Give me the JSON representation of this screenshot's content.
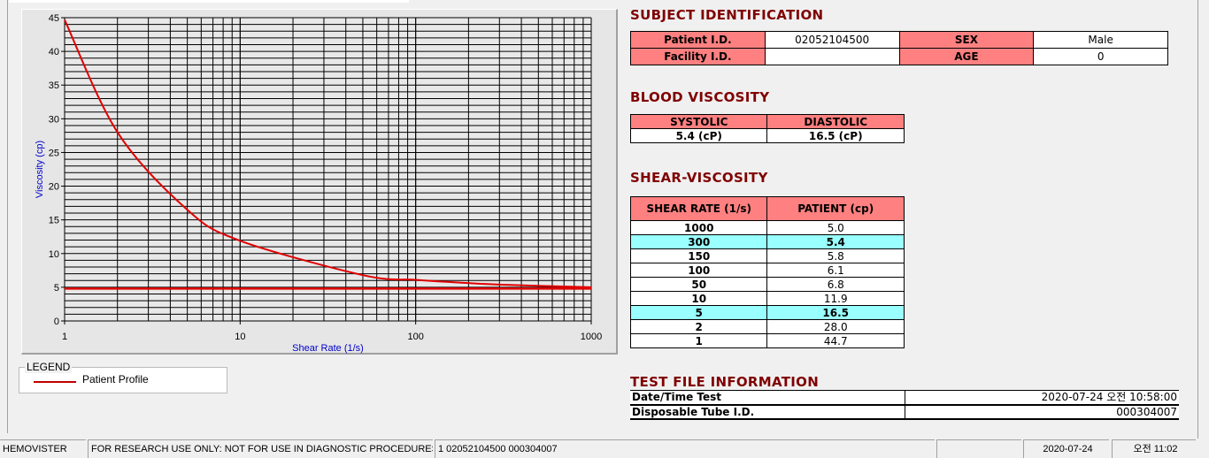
{
  "chart_data": {
    "type": "line",
    "xlabel": "Shear Rate (1/s)",
    "ylabel": "Viscosity (cp)",
    "xscale": "log",
    "xlim": [
      1,
      1000
    ],
    "ylim": [
      0,
      45
    ],
    "xticks": [
      "1",
      "10",
      "100",
      "1000"
    ],
    "yticks": [
      "0",
      "5",
      "10",
      "15",
      "20",
      "25",
      "30",
      "35",
      "40",
      "45"
    ],
    "grid": true,
    "series": [
      {
        "name": "Patient Profile",
        "color": "#e00000",
        "x": [
          1,
          2,
          5,
          10,
          50,
          100,
          150,
          300,
          1000
        ],
        "y": [
          44.7,
          28.0,
          16.5,
          11.9,
          6.8,
          6.1,
          5.8,
          5.4,
          5.0
        ]
      },
      {
        "color": "#e00000",
        "x": [
          1,
          1000
        ],
        "y": [
          4.8,
          4.8
        ]
      }
    ]
  },
  "legend": {
    "title": "LEGEND",
    "item": "Patient Profile"
  },
  "subject": {
    "title": "SUBJECT IDENTIFICATION",
    "patient_id_label": "Patient I.D.",
    "patient_id": "02052104500",
    "sex_label": "SEX",
    "sex": "Male",
    "facility_label": "Facility I.D.",
    "facility": "",
    "age_label": "AGE",
    "age": "0"
  },
  "blood": {
    "title": "BLOOD VISCOSITY",
    "systolic_label": "SYSTOLIC",
    "diastolic_label": "DIASTOLIC",
    "systolic": "5.4 (cP)",
    "diastolic": "16.5 (cP)"
  },
  "shear": {
    "title": "SHEAR-VISCOSITY",
    "col1": "SHEAR RATE (1/s)",
    "col2": "PATIENT (cp)",
    "rows": [
      [
        "1000",
        "5.0",
        false
      ],
      [
        "300",
        "5.4",
        true
      ],
      [
        "150",
        "5.8",
        false
      ],
      [
        "100",
        "6.1",
        false
      ],
      [
        "50",
        "6.8",
        false
      ],
      [
        "10",
        "11.9",
        false
      ],
      [
        "5",
        "16.5",
        true
      ],
      [
        "2",
        "28.0",
        false
      ],
      [
        "1",
        "44.7",
        false
      ]
    ]
  },
  "test": {
    "title": "TEST FILE INFORMATION",
    "date_label": "Date/Time Test",
    "date": "2020-07-24   오전 10:58:00",
    "tube_label": "Disposable Tube I.D.",
    "tube": "000304007"
  },
  "status": {
    "app": "HEMOVISTER",
    "notice": "FOR RESEARCH USE ONLY: NOT FOR USE IN DIAGNOSTIC PROCEDURES",
    "record": "1  02052104500  000304007",
    "empty": "",
    "date": "2020-07-24",
    "time": "오전 11:02"
  },
  "colors": {
    "header_cell": "#ff8080",
    "highlight_row": "#99ffff",
    "title": "#800000",
    "curve": "#e00000",
    "axis_label": "#0000cc"
  }
}
